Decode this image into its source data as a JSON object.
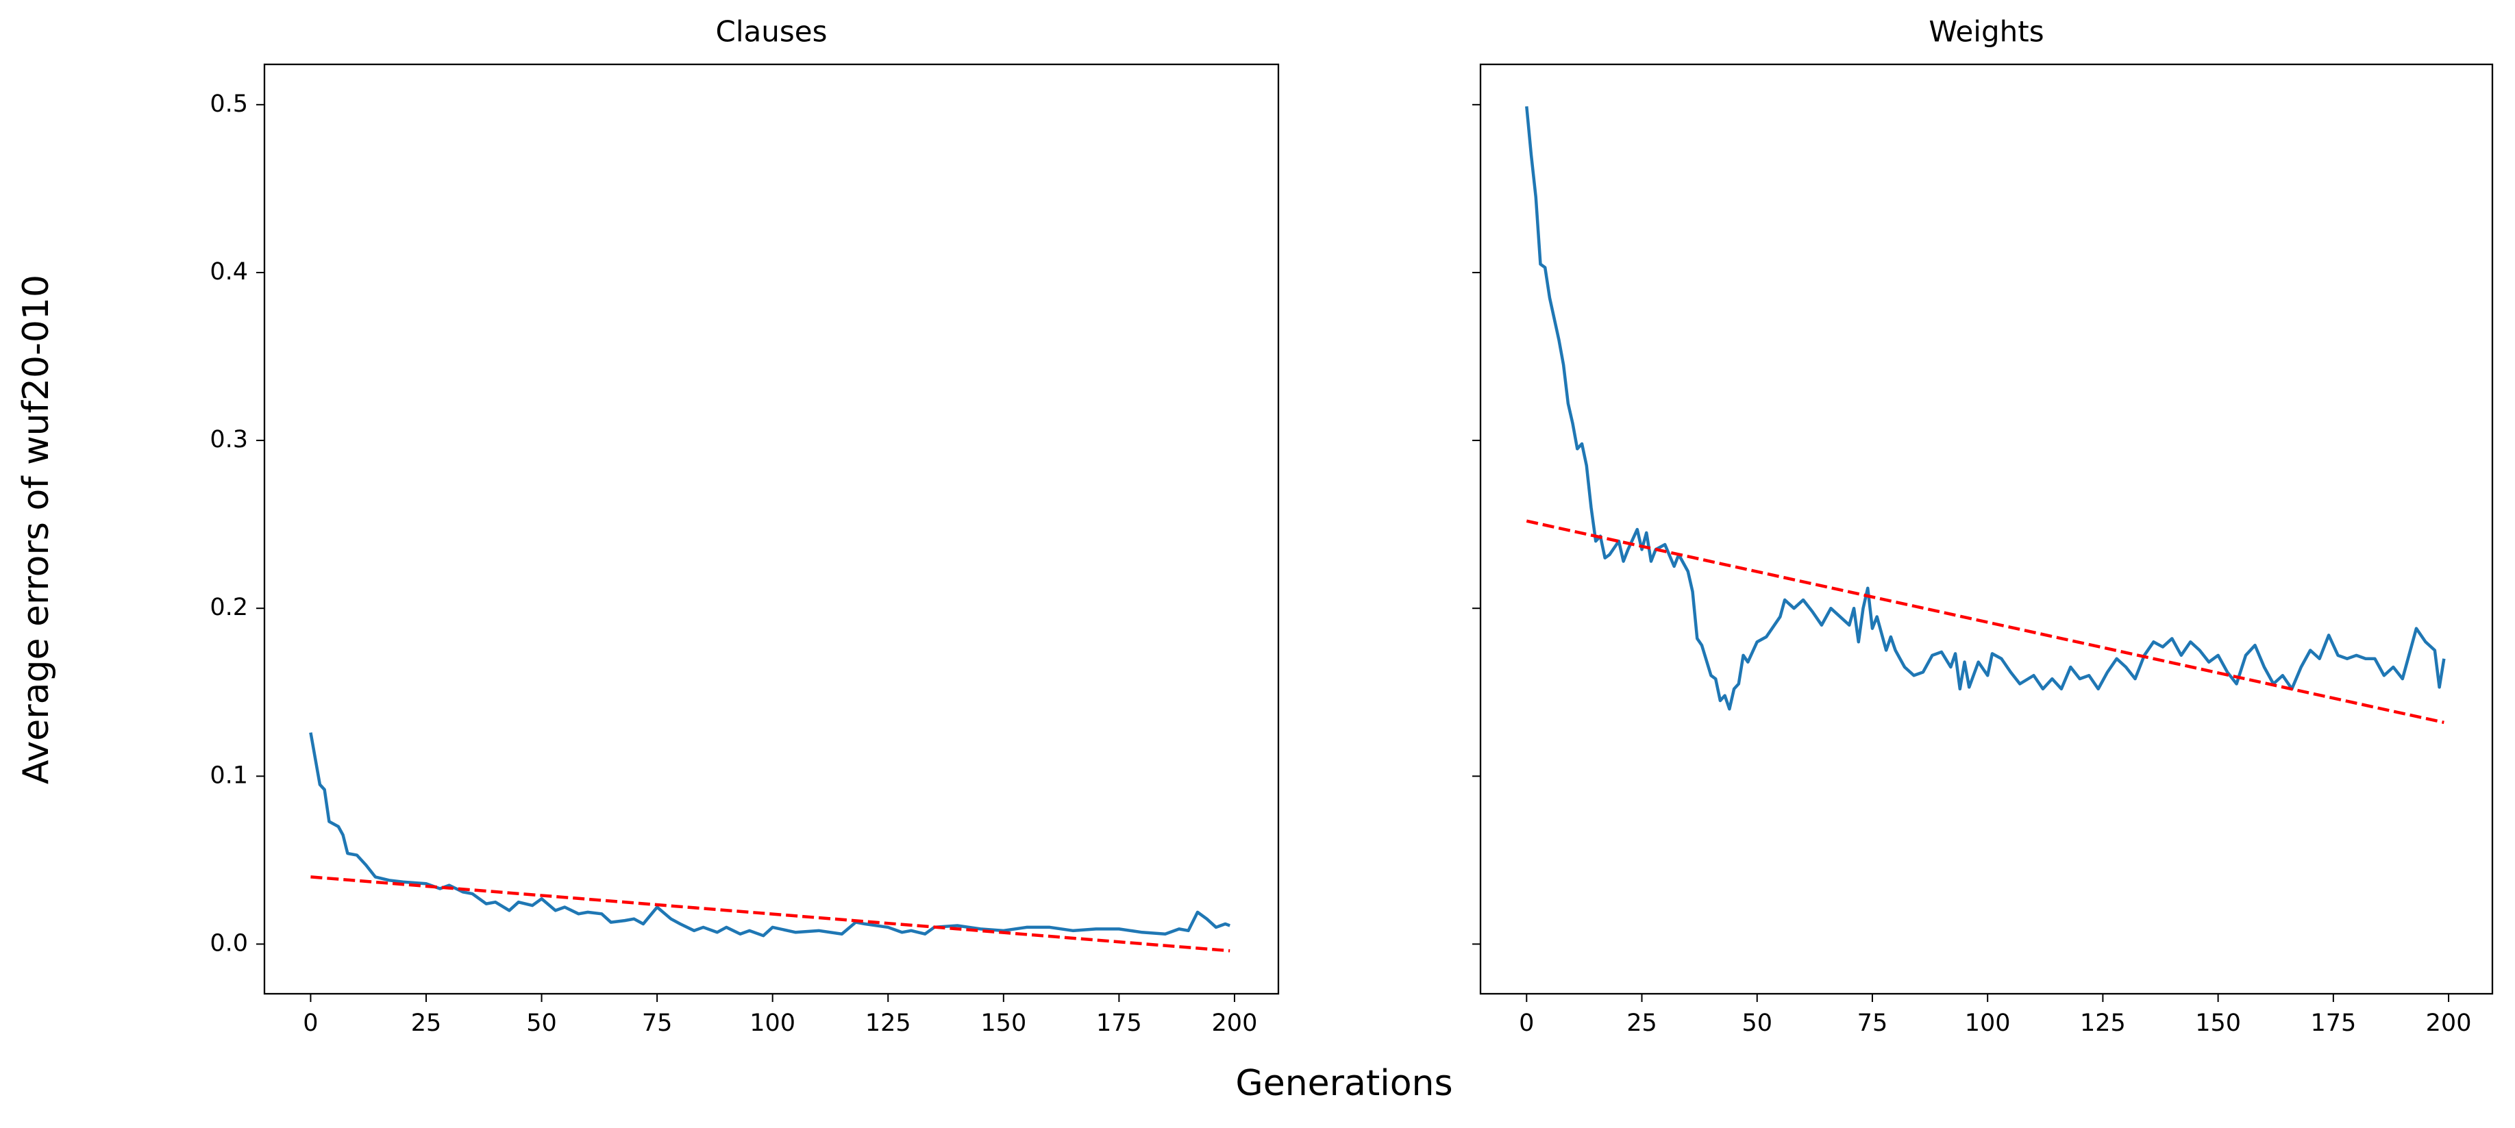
{
  "xlabel": "Generations",
  "ylabel": "Average errors of wuf20-010",
  "chart_data": [
    {
      "type": "line",
      "title": "Clauses",
      "xlim": [
        -10,
        209.5
      ],
      "ylim": [
        -0.0296,
        0.524
      ],
      "xticks": [
        0,
        25,
        50,
        75,
        100,
        125,
        150,
        175,
        200
      ],
      "yticks": [
        {
          "value": 0,
          "label": "0.0"
        },
        0.1,
        0.2,
        0.3,
        0.4,
        0.5
      ],
      "show_ytick_labels": true,
      "series": [
        {
          "color": "#1f77b4",
          "dashed": false,
          "x": [
            0,
            2,
            3,
            4,
            6,
            7,
            8,
            10,
            12,
            14,
            17,
            20,
            25,
            28,
            30,
            33,
            35,
            38,
            40,
            43,
            45,
            48,
            50,
            53,
            55,
            58,
            60,
            63,
            65,
            68,
            70,
            72,
            75,
            78,
            80,
            83,
            85,
            88,
            90,
            93,
            95,
            98,
            100,
            105,
            110,
            115,
            118,
            120,
            125,
            128,
            130,
            133,
            135,
            140,
            145,
            150,
            155,
            160,
            165,
            170,
            175,
            180,
            185,
            188,
            190,
            192,
            194,
            196,
            198,
            199
          ],
          "values": [
            0.126,
            0.095,
            0.092,
            0.073,
            0.07,
            0.065,
            0.054,
            0.053,
            0.047,
            0.04,
            0.038,
            0.037,
            0.036,
            0.033,
            0.035,
            0.031,
            0.03,
            0.024,
            0.025,
            0.02,
            0.025,
            0.023,
            0.027,
            0.02,
            0.022,
            0.018,
            0.019,
            0.018,
            0.013,
            0.014,
            0.015,
            0.012,
            0.022,
            0.015,
            0.012,
            0.008,
            0.01,
            0.007,
            0.01,
            0.006,
            0.008,
            0.005,
            0.01,
            0.007,
            0.008,
            0.006,
            0.013,
            0.012,
            0.01,
            0.007,
            0.008,
            0.006,
            0.01,
            0.011,
            0.009,
            0.008,
            0.01,
            0.01,
            0.008,
            0.009,
            0.009,
            0.007,
            0.006,
            0.009,
            0.008,
            0.019,
            0.015,
            0.01,
            0.012,
            0.011
          ]
        },
        {
          "color": "red",
          "dashed": true,
          "x": [
            0,
            199
          ],
          "values": [
            0.04,
            -0.004
          ]
        }
      ]
    },
    {
      "type": "line",
      "title": "Weights",
      "xlim": [
        -10,
        209.5
      ],
      "ylim": [
        -0.0296,
        0.524
      ],
      "xticks": [
        0,
        25,
        50,
        75,
        100,
        125,
        150,
        175,
        200
      ],
      "yticks": [
        0,
        0.1,
        0.2,
        0.3,
        0.4,
        0.5
      ],
      "show_ytick_labels": false,
      "series": [
        {
          "color": "#1f77b4",
          "dashed": false,
          "x": [
            0,
            1,
            2,
            3,
            4,
            5,
            7,
            8,
            9,
            10,
            11,
            12,
            13,
            14,
            15,
            16,
            17,
            18,
            20,
            21,
            22,
            24,
            25,
            26,
            27,
            28,
            30,
            32,
            33,
            35,
            36,
            37,
            38,
            40,
            41,
            42,
            43,
            44,
            45,
            46,
            47,
            48,
            50,
            52,
            55,
            56,
            58,
            60,
            62,
            64,
            66,
            68,
            70,
            71,
            72,
            73,
            74,
            75,
            76,
            78,
            79,
            80,
            82,
            84,
            86,
            88,
            90,
            92,
            93,
            94,
            95,
            96,
            98,
            100,
            101,
            103,
            105,
            107,
            110,
            112,
            114,
            116,
            118,
            120,
            122,
            124,
            126,
            128,
            130,
            132,
            134,
            136,
            138,
            140,
            142,
            144,
            146,
            148,
            150,
            152,
            154,
            156,
            158,
            160,
            162,
            164,
            166,
            168,
            170,
            172,
            174,
            176,
            178,
            180,
            182,
            184,
            186,
            188,
            190,
            192,
            193,
            195,
            197,
            198,
            199
          ],
          "values": [
            0.499,
            0.47,
            0.445,
            0.405,
            0.403,
            0.385,
            0.36,
            0.345,
            0.322,
            0.31,
            0.295,
            0.298,
            0.285,
            0.26,
            0.24,
            0.243,
            0.23,
            0.232,
            0.24,
            0.228,
            0.235,
            0.247,
            0.235,
            0.245,
            0.228,
            0.235,
            0.238,
            0.225,
            0.232,
            0.222,
            0.21,
            0.182,
            0.178,
            0.16,
            0.158,
            0.145,
            0.148,
            0.14,
            0.152,
            0.155,
            0.172,
            0.168,
            0.18,
            0.183,
            0.195,
            0.205,
            0.2,
            0.205,
            0.198,
            0.19,
            0.2,
            0.195,
            0.19,
            0.2,
            0.18,
            0.2,
            0.212,
            0.188,
            0.195,
            0.175,
            0.183,
            0.175,
            0.165,
            0.16,
            0.162,
            0.172,
            0.174,
            0.165,
            0.173,
            0.152,
            0.168,
            0.153,
            0.168,
            0.16,
            0.173,
            0.17,
            0.162,
            0.155,
            0.16,
            0.152,
            0.158,
            0.152,
            0.165,
            0.158,
            0.16,
            0.152,
            0.162,
            0.17,
            0.165,
            0.158,
            0.172,
            0.18,
            0.177,
            0.182,
            0.172,
            0.18,
            0.175,
            0.168,
            0.172,
            0.162,
            0.155,
            0.172,
            0.178,
            0.165,
            0.155,
            0.16,
            0.152,
            0.165,
            0.175,
            0.17,
            0.184,
            0.172,
            0.17,
            0.172,
            0.17,
            0.17,
            0.16,
            0.165,
            0.158,
            0.178,
            0.188,
            0.18,
            0.175,
            0.153,
            0.17
          ]
        },
        {
          "color": "red",
          "dashed": true,
          "x": [
            0,
            199
          ],
          "values": [
            0.252,
            0.132
          ]
        }
      ]
    }
  ]
}
